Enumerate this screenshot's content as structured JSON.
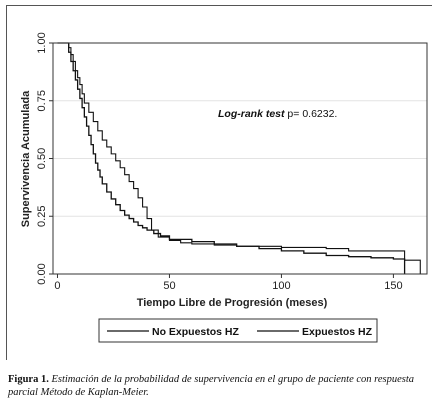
{
  "chart_data": {
    "type": "line",
    "step": true,
    "xlabel": "Tiempo Libre de Progresión (meses)",
    "ylabel": "Supervivencia Acumulada",
    "xlim": [
      -2,
      165
    ],
    "ylim": [
      0,
      1
    ],
    "x_ticks": [
      0,
      50,
      100,
      150
    ],
    "y_ticks": [
      0.0,
      0.25,
      0.5,
      0.75,
      1.0
    ],
    "y_tick_labels": [
      "0.00",
      "0.25",
      "0.50",
      "0.75",
      "1.00"
    ],
    "x_grid": false,
    "y_grid": true,
    "legend_position": "bottom",
    "annotation": {
      "italic": "Log-rank test",
      "normal": " p= 0.6232."
    },
    "series": [
      {
        "name": "No Expuestos HZ",
        "color": "#111111",
        "x": [
          0,
          4,
          5,
          6,
          7,
          8,
          9,
          10,
          11,
          12,
          13,
          14,
          15,
          16,
          17,
          18,
          19,
          20,
          22,
          24,
          26,
          28,
          30,
          32,
          34,
          36,
          38,
          40,
          43,
          46,
          50,
          60,
          70,
          80,
          90,
          100,
          110,
          120,
          130,
          140,
          150,
          155,
          155
        ],
        "y": [
          1.0,
          1.0,
          0.96,
          0.92,
          0.88,
          0.84,
          0.8,
          0.76,
          0.72,
          0.68,
          0.64,
          0.6,
          0.56,
          0.52,
          0.48,
          0.45,
          0.42,
          0.39,
          0.355,
          0.325,
          0.3,
          0.275,
          0.255,
          0.24,
          0.225,
          0.21,
          0.2,
          0.19,
          0.175,
          0.165,
          0.15,
          0.14,
          0.13,
          0.12,
          0.11,
          0.1,
          0.09,
          0.08,
          0.075,
          0.07,
          0.065,
          0.065,
          0.0
        ]
      },
      {
        "name": "Expuestos HZ",
        "color": "#111111",
        "x": [
          0,
          3,
          5,
          6,
          7,
          8,
          9,
          10,
          11,
          12,
          14,
          16,
          18,
          20,
          22,
          24,
          26,
          28,
          30,
          32,
          34,
          36,
          38,
          40,
          42,
          45,
          50,
          55,
          60,
          70,
          80,
          90,
          100,
          110,
          120,
          130,
          140,
          155,
          162,
          162
        ],
        "y": [
          1.0,
          1.0,
          0.98,
          0.95,
          0.92,
          0.88,
          0.85,
          0.82,
          0.78,
          0.74,
          0.7,
          0.66,
          0.62,
          0.58,
          0.55,
          0.52,
          0.49,
          0.46,
          0.43,
          0.4,
          0.37,
          0.33,
          0.29,
          0.24,
          0.19,
          0.16,
          0.145,
          0.135,
          0.13,
          0.125,
          0.12,
          0.12,
          0.115,
          0.115,
          0.11,
          0.1,
          0.1,
          0.06,
          0.06,
          0.0
        ]
      }
    ]
  },
  "caption": {
    "label": "Figura 1.",
    "text": "Estimación de la probabilidad de supervivencia en el grupo de paciente con respuesta parcial Método de Kaplan-Meier."
  }
}
